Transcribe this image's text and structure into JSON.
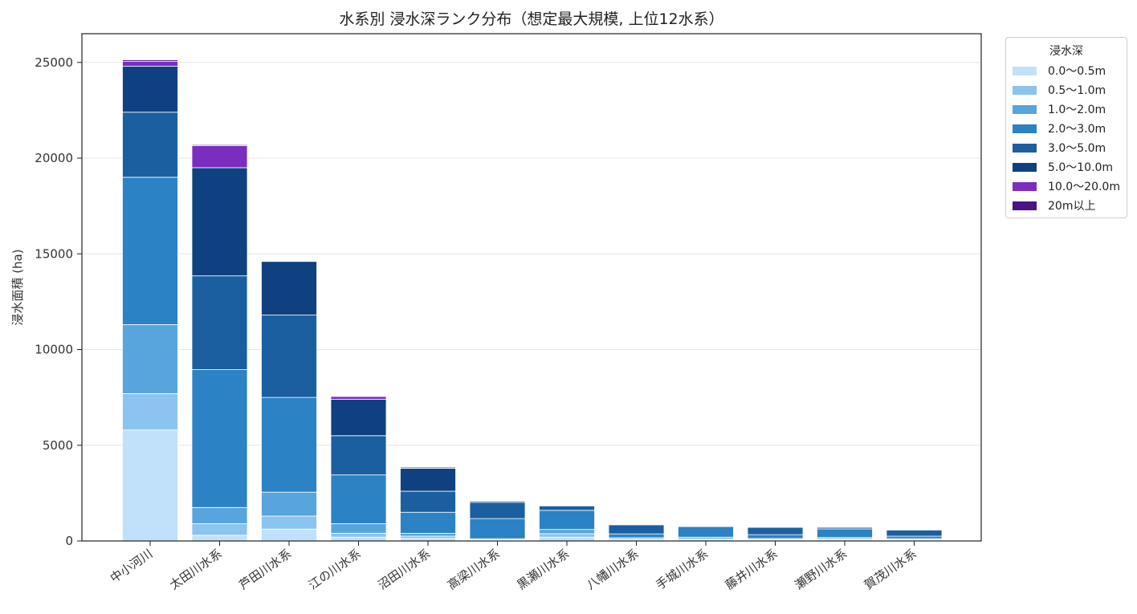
{
  "chart_data": {
    "type": "bar",
    "stacked": true,
    "title": "水系別 浸水深ランク分布（想定最大規模, 上位12水系）",
    "xlabel": "",
    "ylabel": "浸水面積 (ha)",
    "ylim": [
      0,
      26500
    ],
    "yticks": [
      0,
      5000,
      10000,
      15000,
      20000,
      25000
    ],
    "grid": "horizontal",
    "legend_title": "浸水深",
    "legend_position": "outside-top-right",
    "categories": [
      "中小河川",
      "太田川水系",
      "芦田川水系",
      "江の川水系",
      "沼田川水系",
      "高梁川水系",
      "黒瀬川水系",
      "八幡川水系",
      "手城川水系",
      "藤井川水系",
      "瀬野川水系",
      "賀茂川水系"
    ],
    "series": [
      {
        "name": "0.0〜0.5m",
        "color": "#c1e1fb",
        "values": [
          5800,
          300,
          620,
          200,
          130,
          40,
          200,
          50,
          60,
          40,
          70,
          40
        ]
      },
      {
        "name": "0.5〜1.0m",
        "color": "#8ac4ef",
        "values": [
          1900,
          600,
          680,
          200,
          120,
          30,
          180,
          50,
          60,
          40,
          50,
          40
        ]
      },
      {
        "name": "1.0〜2.0m",
        "color": "#58a5dd",
        "values": [
          3600,
          850,
          1250,
          500,
          150,
          50,
          220,
          70,
          80,
          50,
          60,
          40
        ]
      },
      {
        "name": "2.0〜3.0m",
        "color": "#2b82c4",
        "values": [
          7700,
          7200,
          4950,
          2550,
          1100,
          1050,
          1000,
          200,
          550,
          200,
          450,
          130
        ]
      },
      {
        "name": "3.0〜5.0m",
        "color": "#1c5fa1",
        "values": [
          3400,
          4900,
          4300,
          2050,
          1100,
          850,
          230,
          470,
          30,
          380,
          80,
          320
        ]
      },
      {
        "name": "5.0〜10.0m",
        "color": "#0f4180",
        "values": [
          2400,
          5650,
          2800,
          1900,
          1200,
          60,
          0,
          0,
          0,
          0,
          0,
          0
        ]
      },
      {
        "name": "10.0〜20.0m",
        "color": "#7b2dbf",
        "values": [
          250,
          1150,
          0,
          150,
          60,
          0,
          0,
          0,
          0,
          0,
          0,
          0
        ]
      },
      {
        "name": "20m以上",
        "color": "#4b1385",
        "values": [
          80,
          50,
          0,
          20,
          10,
          0,
          0,
          0,
          0,
          0,
          0,
          0
        ]
      }
    ]
  }
}
